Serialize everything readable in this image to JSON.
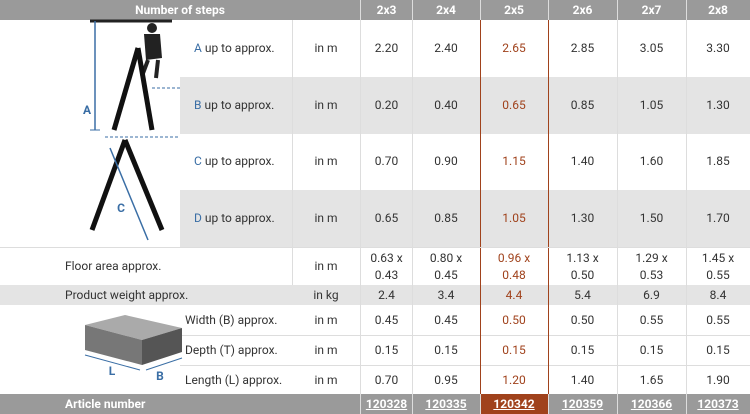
{
  "header": {
    "title": "Number of steps",
    "columns": [
      "2x3",
      "2x4",
      "2x5",
      "2x6",
      "2x7",
      "2x8"
    ]
  },
  "ladder_rows": [
    {
      "letter": "A",
      "label": "up to approx.",
      "unit": "in m",
      "values": [
        "2.20",
        "2.40",
        "2.65",
        "2.85",
        "3.05",
        "3.30"
      ]
    },
    {
      "letter": "B",
      "label": "up to approx.",
      "unit": "in m",
      "values": [
        "0.20",
        "0.40",
        "0.65",
        "0.85",
        "1.05",
        "1.30"
      ]
    },
    {
      "letter": "C",
      "label": "up to approx.",
      "unit": "in m",
      "values": [
        "0.70",
        "0.90",
        "1.15",
        "1.40",
        "1.60",
        "1.85"
      ]
    },
    {
      "letter": "D",
      "label": "up to approx.",
      "unit": "in m",
      "values": [
        "0.65",
        "0.85",
        "1.05",
        "1.30",
        "1.50",
        "1.70"
      ]
    }
  ],
  "floor_area": {
    "label": "Floor area approx.",
    "unit": "in m",
    "values": [
      [
        "0.63 x",
        "0.43"
      ],
      [
        "0.80 x",
        "0.45"
      ],
      [
        "0.96 x",
        "0.48"
      ],
      [
        "1.13 x",
        "0.50"
      ],
      [
        "1.29 x",
        "0.53"
      ],
      [
        "1.45 x",
        "0.55"
      ]
    ]
  },
  "weight": {
    "label": "Product weight approx.",
    "unit": "in kg",
    "values": [
      "2.4",
      "3.4",
      "4.4",
      "5.4",
      "6.9",
      "8.4"
    ]
  },
  "package_rows": [
    {
      "label": "Width (B) approx.",
      "unit": "in m",
      "values": [
        "0.45",
        "0.45",
        "0.50",
        "0.50",
        "0.55",
        "0.55"
      ]
    },
    {
      "label": "Depth (T) approx.",
      "unit": "in m",
      "values": [
        "0.15",
        "0.15",
        "0.15",
        "0.15",
        "0.15",
        "0.15"
      ]
    },
    {
      "label": "Length (L) approx.",
      "unit": "in m",
      "values": [
        "0.70",
        "0.95",
        "1.20",
        "1.40",
        "1.65",
        "1.90"
      ]
    }
  ],
  "article": {
    "label": "Article number",
    "values": [
      "120328",
      "120335",
      "120342",
      "120359",
      "120366",
      "120373"
    ]
  },
  "illustrations": {
    "ladder_labels": [
      "A",
      "C"
    ],
    "box_labels": [
      "L",
      "B"
    ]
  }
}
